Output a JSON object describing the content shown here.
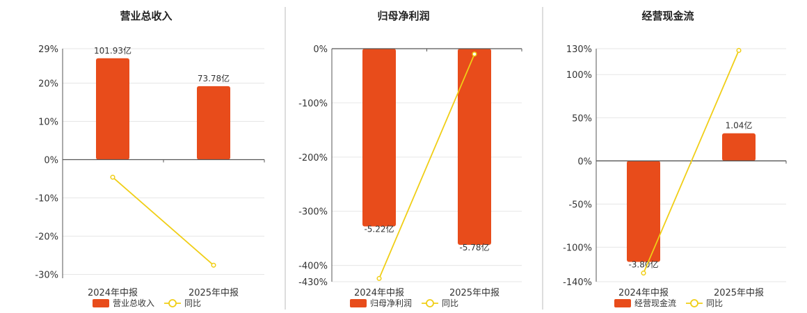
{
  "colors": {
    "bar": "#E84C1B",
    "line": "#F0CE16",
    "grid": "#E6E6E6",
    "axis": "#555555",
    "divider": "#BBBBBB"
  },
  "chart_data": [
    {
      "type": "bar",
      "title": "营业总收入",
      "categories": [
        "2024年中报",
        "2025年中报"
      ],
      "series": [
        {
          "name": "营业总收入",
          "type": "bar",
          "values": [
            26.5,
            19.2
          ],
          "labels": [
            "101.93亿",
            "73.78亿"
          ]
        },
        {
          "name": "同比",
          "type": "line",
          "values": [
            -4.6,
            -27.6
          ]
        }
      ],
      "ylim": [
        -31,
        29
      ],
      "yticks": [
        29,
        20,
        10,
        0,
        -10,
        -20,
        -30
      ],
      "ytick_labels": [
        "29%",
        "20%",
        "10%",
        "0%",
        "-10%",
        "-20%",
        "-30%"
      ],
      "xlabel": "",
      "ylabel": "",
      "legend_position": "bottom"
    },
    {
      "type": "bar",
      "title": "归母净利润",
      "categories": [
        "2024年中报",
        "2025年中报"
      ],
      "series": [
        {
          "name": "归母净利润",
          "type": "bar",
          "values": [
            -328,
            -362
          ],
          "labels": [
            "-5.22亿",
            "-5.78亿"
          ]
        },
        {
          "name": "同比",
          "type": "line",
          "values": [
            -424,
            -10
          ]
        }
      ],
      "ylim": [
        -430,
        0
      ],
      "yticks": [
        0,
        -100,
        -200,
        -300,
        -400,
        -430
      ],
      "ytick_labels": [
        "0%",
        "-100%",
        "-200%",
        "-300%",
        "-400%",
        "-430%"
      ],
      "xlabel": "",
      "ylabel": "",
      "legend_position": "bottom"
    },
    {
      "type": "bar",
      "title": "经营现金流",
      "categories": [
        "2024年中报",
        "2025年中报"
      ],
      "series": [
        {
          "name": "经营现金流",
          "type": "bar",
          "values": [
            -117,
            32
          ],
          "labels": [
            "-3.80亿",
            "1.04亿"
          ]
        },
        {
          "name": "同比",
          "type": "line",
          "values": [
            -130,
            128
          ]
        }
      ],
      "ylim": [
        -140,
        130
      ],
      "yticks": [
        130,
        100,
        50,
        0,
        -50,
        -100,
        -140
      ],
      "ytick_labels": [
        "130%",
        "100%",
        "50%",
        "0%",
        "-50%",
        "-100%",
        "-140%"
      ],
      "xlabel": "",
      "ylabel": "",
      "legend_position": "bottom"
    }
  ]
}
